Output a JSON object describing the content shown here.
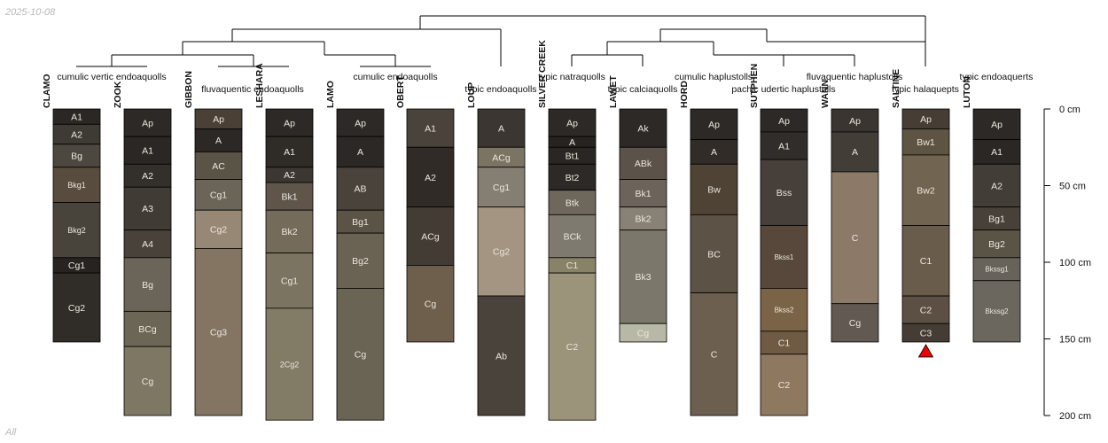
{
  "header": {
    "date": "2025-10-08"
  },
  "footer": {
    "subset": "All"
  },
  "depth_axis": {
    "unit": "cm",
    "max_depth": 200,
    "ticks": [
      0,
      50,
      100,
      150,
      200
    ]
  },
  "taxa": [
    "cumulic vertic endoaquolls",
    "fluvaquentic endoaquolls",
    "cumulic endoaquolls",
    "typic endoaquolls",
    "typic natraquolls",
    "typic calciaquolls",
    "cumulic haplustolls",
    "pachic udertic haplustolls",
    "fluvaquentic haplustolls",
    "typic halaquepts",
    "typic endoaquerts"
  ],
  "profiles": [
    {
      "name": "CLAMO",
      "horizons": [
        {
          "name": "A1",
          "top": 0,
          "bottom": 10,
          "color": "#2a2724"
        },
        {
          "name": "A2",
          "top": 10,
          "bottom": 23,
          "color": "#3e3a34"
        },
        {
          "name": "Bg",
          "top": 23,
          "bottom": 38,
          "color": "#4c4840"
        },
        {
          "name": "Bkg1",
          "top": 38,
          "bottom": 61,
          "color": "#574c3e"
        },
        {
          "name": "Bkg2",
          "top": 61,
          "bottom": 97,
          "color": "#48443c"
        },
        {
          "name": "Cg1",
          "top": 97,
          "bottom": 107,
          "color": "#262320"
        },
        {
          "name": "Cg2",
          "top": 107,
          "bottom": 152,
          "color": "#302d29"
        }
      ]
    },
    {
      "name": "ZOOK",
      "horizons": [
        {
          "name": "Ap",
          "top": 0,
          "bottom": 18,
          "color": "#2c2926"
        },
        {
          "name": "A1",
          "top": 18,
          "bottom": 36,
          "color": "#2a2724"
        },
        {
          "name": "A2",
          "top": 36,
          "bottom": 51,
          "color": "#332f2b"
        },
        {
          "name": "A3",
          "top": 51,
          "bottom": 79,
          "color": "#403b35"
        },
        {
          "name": "A4",
          "top": 79,
          "bottom": 97,
          "color": "#48423b"
        },
        {
          "name": "Bg",
          "top": 97,
          "bottom": 132,
          "color": "#6a6558"
        },
        {
          "name": "BCg",
          "top": 132,
          "bottom": 155,
          "color": "#6c6656"
        },
        {
          "name": "Cg",
          "top": 155,
          "bottom": 200,
          "color": "#7d7763"
        }
      ]
    },
    {
      "name": "GIBBON",
      "horizons": [
        {
          "name": "Ap",
          "top": 0,
          "bottom": 13,
          "color": "#4a4036"
        },
        {
          "name": "A",
          "top": 13,
          "bottom": 28,
          "color": "#2c2825"
        },
        {
          "name": "AC",
          "top": 28,
          "bottom": 46,
          "color": "#5a5447"
        },
        {
          "name": "Cg1",
          "top": 46,
          "bottom": 66,
          "color": "#6b6557"
        },
        {
          "name": "Cg2",
          "top": 66,
          "bottom": 91,
          "color": "#978876"
        },
        {
          "name": "Cg3",
          "top": 91,
          "bottom": 200,
          "color": "#847563"
        }
      ]
    },
    {
      "name": "LESHARA",
      "horizons": [
        {
          "name": "Ap",
          "top": 0,
          "bottom": 18,
          "color": "#2c2926"
        },
        {
          "name": "A1",
          "top": 18,
          "bottom": 38,
          "color": "#2f2b27"
        },
        {
          "name": "A2",
          "top": 38,
          "bottom": 48,
          "color": "#3c3732"
        },
        {
          "name": "Bk1",
          "top": 48,
          "bottom": 66,
          "color": "#5f5649"
        },
        {
          "name": "Bk2",
          "top": 66,
          "bottom": 94,
          "color": "#756b5b"
        },
        {
          "name": "Cg1",
          "top": 94,
          "bottom": 130,
          "color": "#7a7461"
        },
        {
          "name": "2Cg2",
          "top": 130,
          "bottom": 203,
          "color": "#827c66"
        }
      ]
    },
    {
      "name": "LAMO",
      "horizons": [
        {
          "name": "Ap",
          "top": 0,
          "bottom": 18,
          "color": "#2c2926"
        },
        {
          "name": "A",
          "top": 18,
          "bottom": 38,
          "color": "#2c2825"
        },
        {
          "name": "AB",
          "top": 38,
          "bottom": 66,
          "color": "#4a433b"
        },
        {
          "name": "Bg1",
          "top": 66,
          "bottom": 81,
          "color": "#5b5446"
        },
        {
          "name": "Bg2",
          "top": 81,
          "bottom": 117,
          "color": "#6a6252"
        },
        {
          "name": "Cg",
          "top": 117,
          "bottom": 203,
          "color": "#6a6455"
        }
      ]
    },
    {
      "name": "OBERT",
      "horizons": [
        {
          "name": "A1",
          "top": 0,
          "bottom": 25,
          "color": "#4a433b"
        },
        {
          "name": "A2",
          "top": 25,
          "bottom": 64,
          "color": "#312b27"
        },
        {
          "name": "ACg",
          "top": 64,
          "bottom": 102,
          "color": "#433c35"
        },
        {
          "name": "Cg",
          "top": 102,
          "bottom": 152,
          "color": "#6e5e4c"
        }
      ]
    },
    {
      "name": "LOUP",
      "horizons": [
        {
          "name": "A",
          "top": 0,
          "bottom": 25,
          "color": "#3b3631"
        },
        {
          "name": "ACg",
          "top": 25,
          "bottom": 38,
          "color": "#7c7463"
        },
        {
          "name": "Cg1",
          "top": 38,
          "bottom": 64,
          "color": "#857e72"
        },
        {
          "name": "Cg2",
          "top": 64,
          "bottom": 122,
          "color": "#a39582"
        },
        {
          "name": "Ab",
          "top": 122,
          "bottom": 200,
          "color": "#4a433b"
        }
      ]
    },
    {
      "name": "SILVER CREEK",
      "horizons": [
        {
          "name": "Ap",
          "top": 0,
          "bottom": 18,
          "color": "#2c2926"
        },
        {
          "name": "A",
          "top": 18,
          "bottom": 25,
          "color": "#262320"
        },
        {
          "name": "Bt1",
          "top": 25,
          "bottom": 36,
          "color": "#2a2623"
        },
        {
          "name": "Bt2",
          "top": 36,
          "bottom": 53,
          "color": "#2c2926"
        },
        {
          "name": "Btk",
          "top": 53,
          "bottom": 69,
          "color": "#6d675c"
        },
        {
          "name": "BCk",
          "top": 69,
          "bottom": 97,
          "color": "#7f7a6f"
        },
        {
          "name": "C1",
          "top": 97,
          "bottom": 107,
          "color": "#888366"
        },
        {
          "name": "C2",
          "top": 107,
          "bottom": 203,
          "color": "#9b937a"
        }
      ]
    },
    {
      "name": "LAWET",
      "horizons": [
        {
          "name": "Ak",
          "top": 0,
          "bottom": 25,
          "color": "#2c2926"
        },
        {
          "name": "ABk",
          "top": 25,
          "bottom": 46,
          "color": "#5b5249"
        },
        {
          "name": "Bk1",
          "top": 46,
          "bottom": 64,
          "color": "#6c635a"
        },
        {
          "name": "Bk2",
          "top": 64,
          "bottom": 79,
          "color": "#888176"
        },
        {
          "name": "Bk3",
          "top": 79,
          "bottom": 140,
          "color": "#7b776a"
        },
        {
          "name": "Cg",
          "top": 140,
          "bottom": 152,
          "color": "#b7b9a6"
        }
      ]
    },
    {
      "name": "HORD",
      "horizons": [
        {
          "name": "Ap",
          "top": 0,
          "bottom": 20,
          "color": "#2c2926"
        },
        {
          "name": "A",
          "top": 20,
          "bottom": 36,
          "color": "#312c28"
        },
        {
          "name": "Bw",
          "top": 36,
          "bottom": 69,
          "color": "#4f4335"
        },
        {
          "name": "BC",
          "top": 69,
          "bottom": 120,
          "color": "#5d5246"
        },
        {
          "name": "C",
          "top": 120,
          "bottom": 200,
          "color": "#6c5f4f"
        }
      ]
    },
    {
      "name": "SUTPHEN",
      "horizons": [
        {
          "name": "Ap",
          "top": 0,
          "bottom": 15,
          "color": "#2c2926"
        },
        {
          "name": "A1",
          "top": 15,
          "bottom": 33,
          "color": "#312d2a"
        },
        {
          "name": "Bss",
          "top": 33,
          "bottom": 76,
          "color": "#47403a"
        },
        {
          "name": "Bkss1",
          "top": 76,
          "bottom": 117,
          "color": "#57483b"
        },
        {
          "name": "Bkss2",
          "top": 117,
          "bottom": 145,
          "color": "#7b6348"
        },
        {
          "name": "C1",
          "top": 145,
          "bottom": 160,
          "color": "#6f5a43"
        },
        {
          "name": "C2",
          "top": 160,
          "bottom": 200,
          "color": "#8f7860"
        }
      ]
    },
    {
      "name": "WANN",
      "horizons": [
        {
          "name": "Ap",
          "top": 0,
          "bottom": 15,
          "color": "#3a3531"
        },
        {
          "name": "A",
          "top": 15,
          "bottom": 41,
          "color": "#433d37"
        },
        {
          "name": "C",
          "top": 41,
          "bottom": 127,
          "color": "#8c7a69"
        },
        {
          "name": "Cg",
          "top": 127,
          "bottom": 152,
          "color": "#625a52"
        }
      ]
    },
    {
      "name": "SALTINE",
      "horizons": [
        {
          "name": "Ap",
          "top": 0,
          "bottom": 13,
          "color": "#463d34"
        },
        {
          "name": "Bw1",
          "top": 13,
          "bottom": 30,
          "color": "#5e5443"
        },
        {
          "name": "Bw2",
          "top": 30,
          "bottom": 76,
          "color": "#716450"
        },
        {
          "name": "C1",
          "top": 76,
          "bottom": 122,
          "color": "#6a5c4b"
        },
        {
          "name": "C2",
          "top": 122,
          "bottom": 140,
          "color": "#5c4f43"
        },
        {
          "name": "C3",
          "top": 140,
          "bottom": 152,
          "color": "#453c35"
        }
      ]
    },
    {
      "name": "LUTON",
      "horizons": [
        {
          "name": "Ap",
          "top": 0,
          "bottom": 20,
          "color": "#2c2926"
        },
        {
          "name": "A1",
          "top": 20,
          "bottom": 36,
          "color": "#2a2724"
        },
        {
          "name": "A2",
          "top": 36,
          "bottom": 64,
          "color": "#433d37"
        },
        {
          "name": "Bg1",
          "top": 64,
          "bottom": 79,
          "color": "#47413a"
        },
        {
          "name": "Bg2",
          "top": 79,
          "bottom": 97,
          "color": "#5a5447"
        },
        {
          "name": "Bkssg1",
          "top": 97,
          "bottom": 112,
          "color": "#67625a"
        },
        {
          "name": "Bkssg2",
          "top": 112,
          "bottom": 152,
          "color": "#6b675e"
        }
      ]
    }
  ],
  "marker": {
    "profile": "SALTINE",
    "shape": "triangle",
    "color": "#ee0000"
  }
}
